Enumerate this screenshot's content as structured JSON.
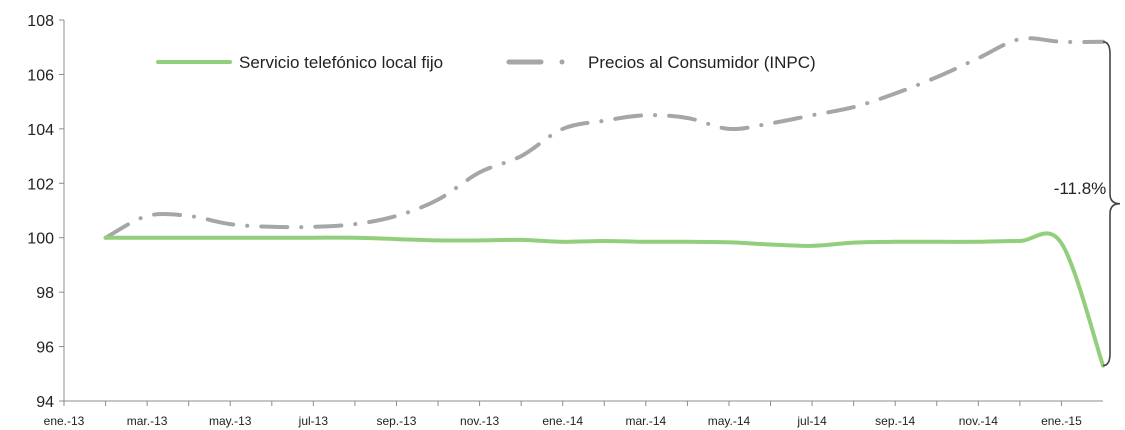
{
  "chart_data": {
    "type": "line",
    "title": "",
    "xlabel": "",
    "ylabel": "",
    "ylim": [
      94,
      108
    ],
    "yticks": [
      94,
      96,
      98,
      100,
      102,
      104,
      106,
      108
    ],
    "grid": false,
    "legend_position": "top",
    "x": [
      "ene.-13",
      "feb.-13",
      "mar.-13",
      "abr.-13",
      "may.-13",
      "jun.-13",
      "jul.-13",
      "ago.-13",
      "sep.-13",
      "oct.-13",
      "nov.-13",
      "dic.-13",
      "ene.-14",
      "feb.-14",
      "mar.-14",
      "abr.-14",
      "may.-14",
      "jun.-14",
      "jul.-14",
      "ago.-14",
      "sep.-14",
      "oct.-14",
      "nov.-14",
      "dic.-14",
      "ene.-15"
    ],
    "xtick_labels": [
      "ene.-13",
      "mar.-13",
      "may.-13",
      "jul-13",
      "sep.-13",
      "nov.-13",
      "ene.-14",
      "mar.-14",
      "may.-14",
      "jul-14",
      "sep.-14",
      "nov.-14",
      "ene.-15"
    ],
    "series": [
      {
        "name": "Servicio telefónico local fijo",
        "color": "#92cf7c",
        "style": "solid",
        "values": [
          100.0,
          100.0,
          100.0,
          100.0,
          100.0,
          100.0,
          100.0,
          99.95,
          99.9,
          99.9,
          99.92,
          99.85,
          99.88,
          99.85,
          99.85,
          99.83,
          99.75,
          99.7,
          99.82,
          99.85,
          99.85,
          99.85,
          99.88,
          99.8,
          95.3
        ]
      },
      {
        "name": "Precios al Consumidor (INPC)",
        "color": "#a6a6a6",
        "style": "dash-dot",
        "values": [
          100.0,
          100.8,
          100.8,
          100.5,
          100.4,
          100.4,
          100.5,
          100.8,
          101.4,
          102.4,
          103.0,
          104.0,
          104.3,
          104.5,
          104.4,
          104.0,
          104.2,
          104.5,
          104.8,
          105.3,
          105.9,
          106.6,
          107.3,
          107.2,
          107.2
        ]
      }
    ],
    "annotation": {
      "label": "-11.8%"
    }
  }
}
